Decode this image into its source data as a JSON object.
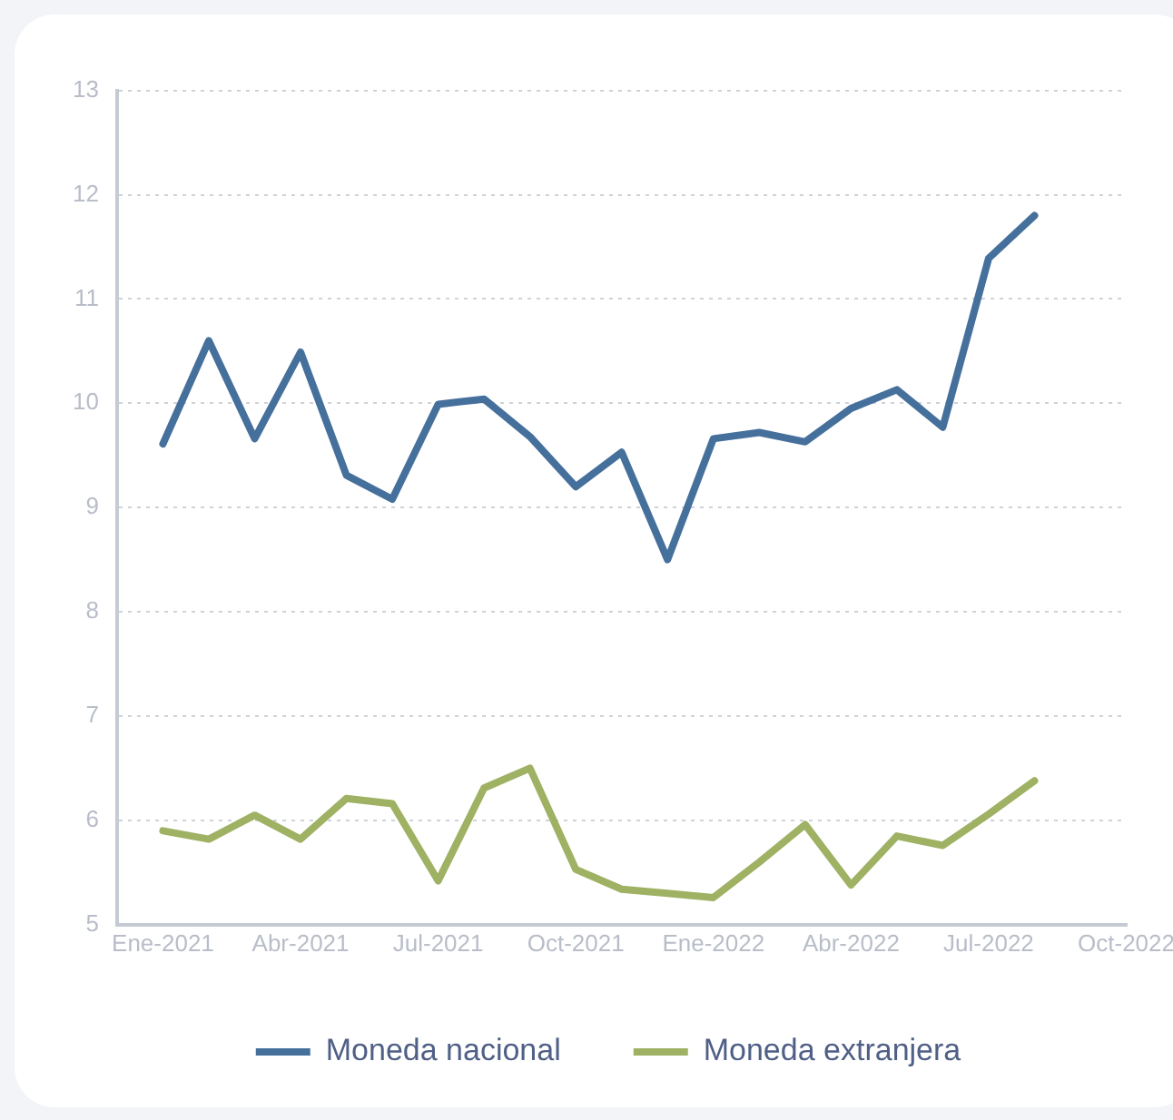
{
  "chart_data": {
    "type": "line",
    "x": [
      "2021-01",
      "2021-02",
      "2021-03",
      "2021-04",
      "2021-05",
      "2021-06",
      "2021-07",
      "2021-08",
      "2021-09",
      "2021-10",
      "2021-11",
      "2021-12",
      "2022-01",
      "2022-02",
      "2022-03",
      "2022-04",
      "2022-05",
      "2022-06",
      "2022-07",
      "2022-08"
    ],
    "series": [
      {
        "name": "Moneda nacional",
        "color": "#46709c",
        "values": [
          9.61,
          10.6,
          9.66,
          10.49,
          9.31,
          9.08,
          9.99,
          10.04,
          9.68,
          9.2,
          9.53,
          8.5,
          9.66,
          9.72,
          9.63,
          9.95,
          10.13,
          9.77,
          11.39,
          11.8
        ]
      },
      {
        "name": "Moneda extranjera",
        "color": "#9fb163",
        "values": [
          5.9,
          5.82,
          6.05,
          5.82,
          6.21,
          6.16,
          5.42,
          6.31,
          6.5,
          5.53,
          5.34,
          5.3,
          5.26,
          5.6,
          5.96,
          5.38,
          5.85,
          5.76,
          6.06,
          6.38
        ]
      }
    ],
    "xlim": [
      "2020-12",
      "2022-10"
    ],
    "xticks": [
      {
        "value": "2021-01",
        "label": "Ene-2021"
      },
      {
        "value": "2021-04",
        "label": "Abr-2021"
      },
      {
        "value": "2021-07",
        "label": "Jul-2021"
      },
      {
        "value": "2021-10",
        "label": "Oct-2021"
      },
      {
        "value": "2022-01",
        "label": "Ene-2022"
      },
      {
        "value": "2022-04",
        "label": "Abr-2022"
      },
      {
        "value": "2022-07",
        "label": "Jul-2022"
      },
      {
        "value": "2022-10",
        "label": "Oct-2022"
      }
    ],
    "ylim": [
      5,
      13
    ],
    "yticks": [
      5,
      6,
      7,
      8,
      9,
      10,
      11,
      12,
      13
    ],
    "grid": "y",
    "legend": "bottom",
    "marker": "none",
    "line_style": "solid"
  }
}
